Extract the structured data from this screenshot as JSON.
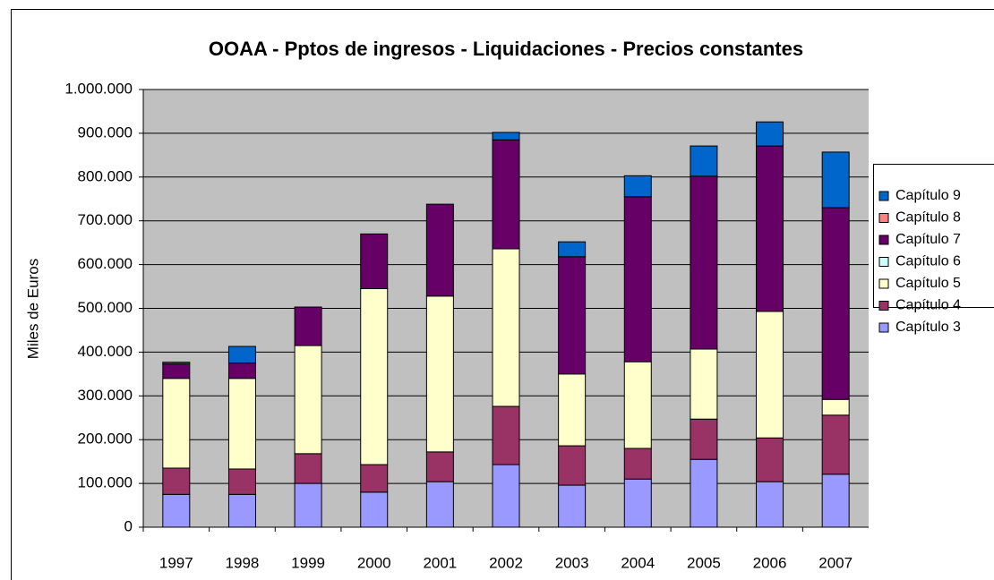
{
  "chart_data": {
    "type": "stacked_bar",
    "title": "OOAA - Pptos de ingresos - Liquidaciones - Precios constantes",
    "y_label": "Miles de Euros",
    "categories": [
      "1997",
      "1998",
      "1999",
      "2000",
      "2001",
      "2002",
      "2003",
      "2004",
      "2005",
      "2006",
      "2007"
    ],
    "series": [
      {
        "name": "Capítulo 3",
        "color": "#9999ff",
        "values": [
          75000,
          75000,
          100000,
          80000,
          104000,
          143000,
          96000,
          110000,
          155000,
          104000,
          121000
        ]
      },
      {
        "name": "Capítulo 4",
        "color": "#993366",
        "values": [
          60000,
          58000,
          68000,
          63000,
          68000,
          133000,
          90000,
          70000,
          92000,
          100000,
          135000
        ]
      },
      {
        "name": "Capítulo 5",
        "color": "#ffffcc",
        "values": [
          205000,
          207000,
          247000,
          402000,
          356000,
          360000,
          164000,
          198000,
          160000,
          289000,
          36000
        ]
      },
      {
        "name": "Capítulo 6",
        "color": "#ccffff",
        "values": [
          0,
          0,
          0,
          0,
          0,
          0,
          0,
          0,
          0,
          0,
          0
        ]
      },
      {
        "name": "Capítulo 7",
        "color": "#660066",
        "values": [
          33000,
          35000,
          88000,
          125000,
          210000,
          249000,
          268000,
          377000,
          395000,
          378000,
          438000
        ]
      },
      {
        "name": "Capítulo 8",
        "color": "#ff8080",
        "values": [
          0,
          0,
          0,
          0,
          0,
          0,
          0,
          0,
          0,
          0,
          0
        ]
      },
      {
        "name": "Capítulo 9",
        "color": "#0066cc",
        "values": [
          4000,
          38000,
          0,
          0,
          0,
          17000,
          34000,
          48000,
          69000,
          55000,
          127000
        ]
      }
    ],
    "ylim": [
      0,
      1000000
    ],
    "yticks": [
      0,
      {
        "value": 100000,
        "label": "100.000"
      },
      {
        "value": 200000,
        "label": "200.000"
      },
      {
        "value": 300000,
        "label": "300.000"
      },
      {
        "value": 400000,
        "label": "400.000"
      },
      {
        "value": 500000,
        "label": "500.000"
      },
      {
        "value": 600000,
        "label": "600.000"
      },
      {
        "value": 700000,
        "label": "700.000"
      },
      {
        "value": 800000,
        "label": "800.000"
      },
      {
        "value": 900000,
        "label": "900.000"
      },
      {
        "value": 1000000,
        "label": "1.000.000"
      }
    ],
    "grid": true,
    "legend": "right"
  }
}
